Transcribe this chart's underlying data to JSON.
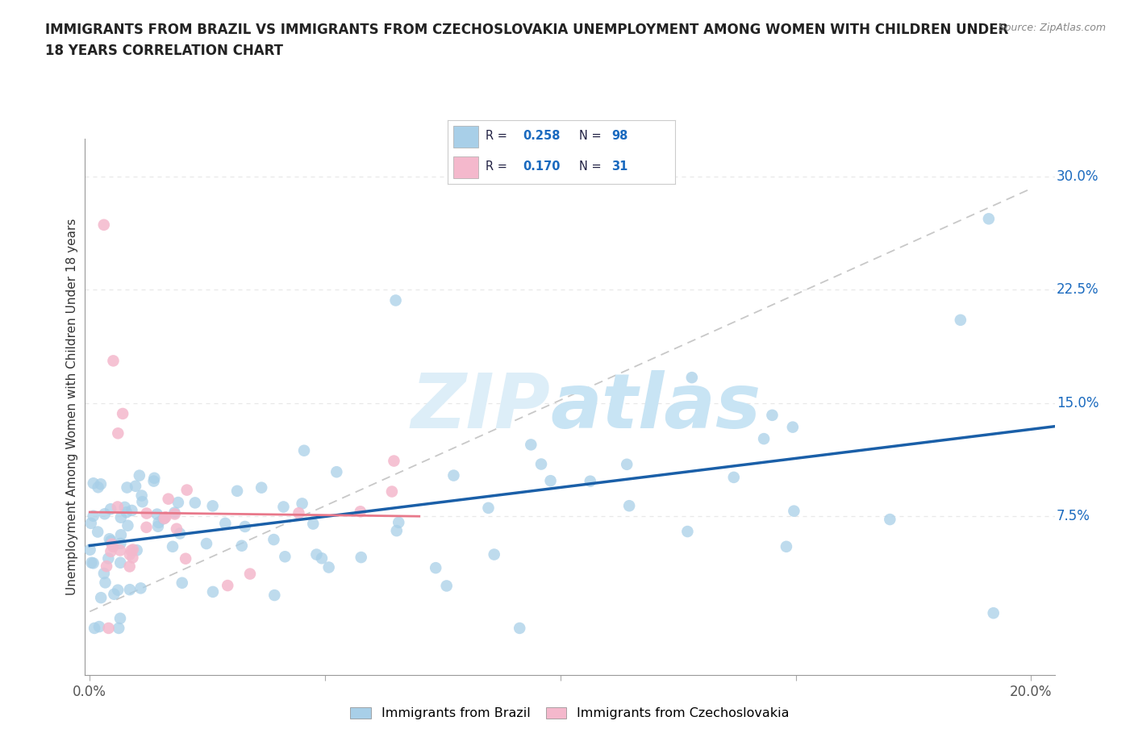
{
  "title_line1": "IMMIGRANTS FROM BRAZIL VS IMMIGRANTS FROM CZECHOSLOVAKIA UNEMPLOYMENT AMONG WOMEN WITH CHILDREN UNDER",
  "title_line2": "18 YEARS CORRELATION CHART",
  "ylabel": "Unemployment Among Women with Children Under 18 years",
  "source_text": "Source: ZipAtlas.com",
  "xlim": [
    -0.001,
    0.205
  ],
  "ylim": [
    -0.03,
    0.325
  ],
  "xticks": [
    0.0,
    0.05,
    0.1,
    0.15,
    0.2
  ],
  "xtick_labels_show": [
    "0.0%",
    "",
    "",
    "",
    "20.0%"
  ],
  "ytick_positions": [
    0.075,
    0.15,
    0.225,
    0.3
  ],
  "ytick_labels": [
    "7.5%",
    "15.0%",
    "22.5%",
    "30.0%"
  ],
  "brazil_R": 0.258,
  "brazil_N": 98,
  "czech_R": 0.17,
  "czech_N": 31,
  "brazil_scatter_color": "#a8cfe8",
  "czech_scatter_color": "#f4b8cc",
  "brazil_line_color": "#1a5fa8",
  "czech_line_color": "#e8788a",
  "ref_line_color": "#c8c8c8",
  "grid_color": "#e8e8e8",
  "legend_R_color": "#1a6abf",
  "legend_N_color": "#1a6abf",
  "legend_border_color": "#cccccc",
  "legend_brazil_label": "Immigrants from Brazil",
  "legend_czech_label": "Immigrants from Czechoslovakia",
  "title_color": "#222222",
  "axis_label_color": "#333333",
  "source_color": "#888888",
  "right_label_color": "#1a6abf"
}
